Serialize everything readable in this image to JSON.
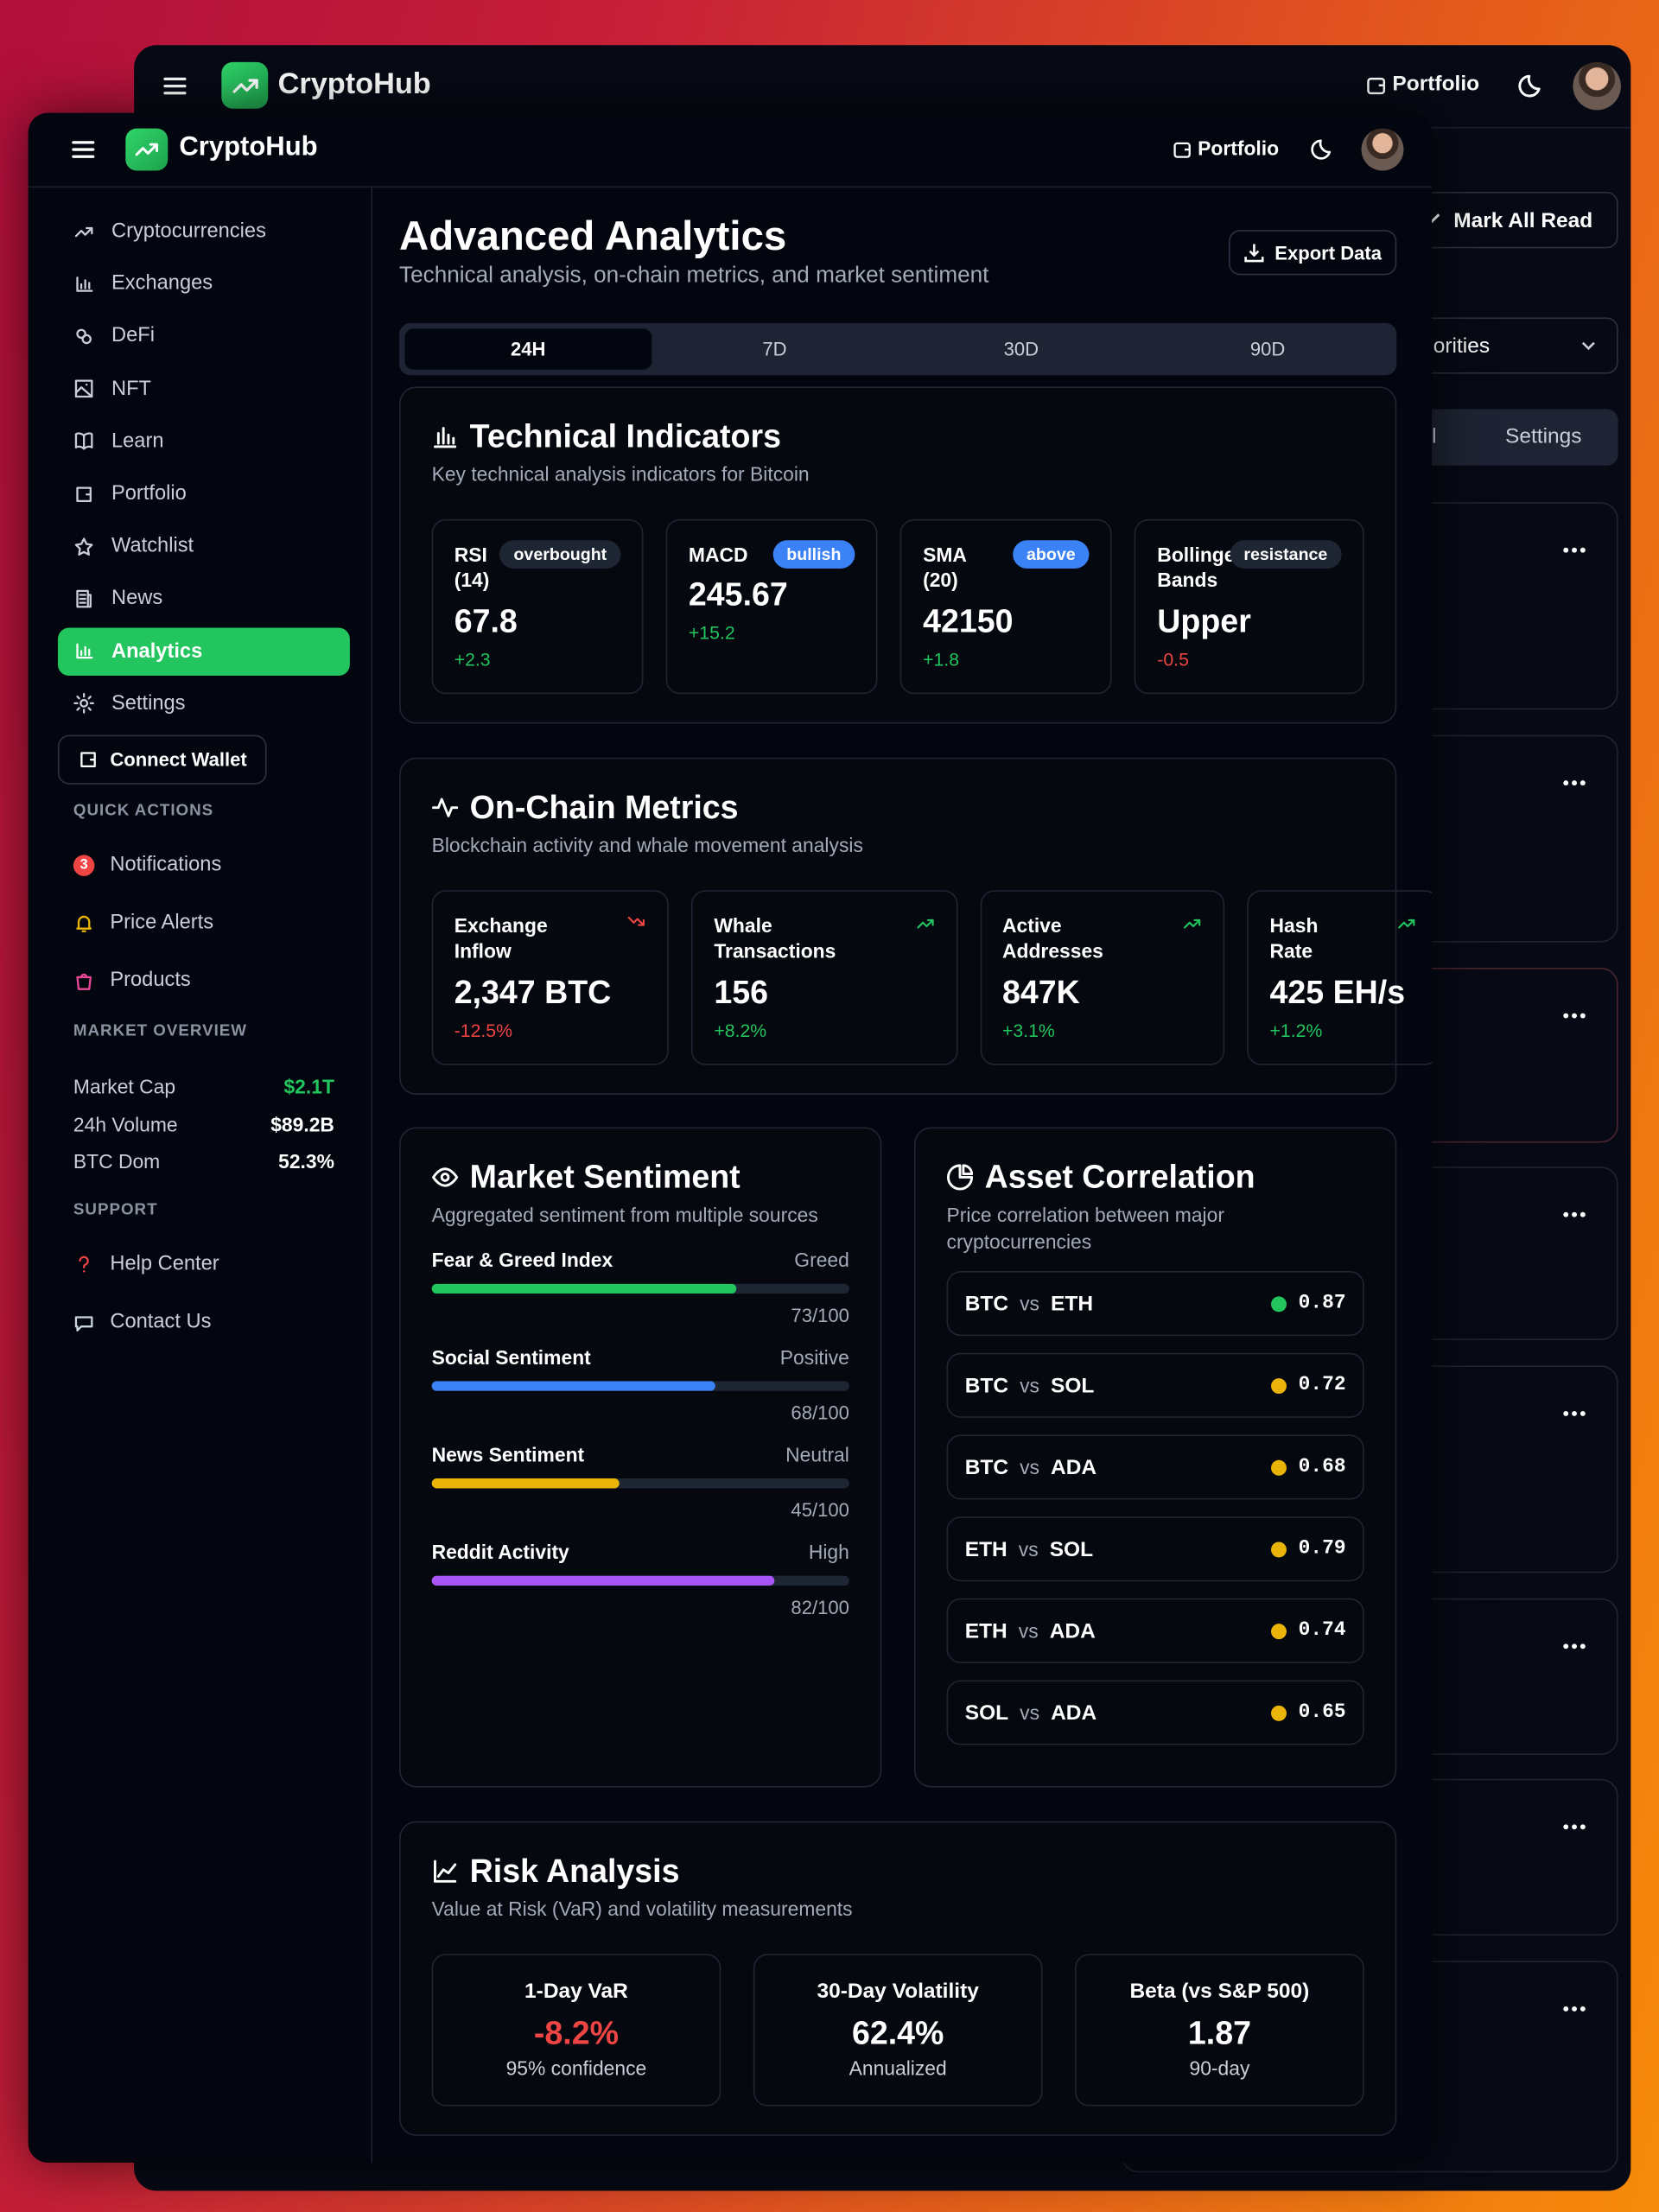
{
  "back_window": {
    "brand": "CryptoHub",
    "portfolio": "Portfolio",
    "mark_all_read": "Mark All Read",
    "filter": "orities",
    "tabs": [
      "l",
      "Settings"
    ]
  },
  "header": {
    "brand": "CryptoHub",
    "portfolio": "Portfolio"
  },
  "sidebar": {
    "nav": [
      {
        "label": "Cryptocurrencies"
      },
      {
        "label": "Exchanges"
      },
      {
        "label": "DeFi"
      },
      {
        "label": "NFT"
      },
      {
        "label": "Learn"
      },
      {
        "label": "Portfolio"
      },
      {
        "label": "Watchlist"
      },
      {
        "label": "News"
      },
      {
        "label": "Analytics",
        "active": true
      },
      {
        "label": "Settings"
      }
    ],
    "connect_wallet": "Connect Wallet",
    "quick_actions": {
      "title": "QUICK ACTIONS",
      "items": [
        {
          "badge": "3",
          "label": "Notifications"
        },
        {
          "label": "Price Alerts"
        },
        {
          "label": "Products"
        }
      ]
    },
    "market_overview": {
      "title": "MARKET OVERVIEW",
      "rows": [
        {
          "label": "Market Cap",
          "value": "$2.1T",
          "color": "#22c55e"
        },
        {
          "label": "24h Volume",
          "value": "$89.2B",
          "color": "#ffffff"
        },
        {
          "label": "BTC Dom",
          "value": "52.3%",
          "color": "#ffffff"
        }
      ]
    },
    "support": {
      "title": "SUPPORT",
      "items": [
        "Help Center",
        "Contact Us"
      ]
    }
  },
  "page": {
    "title": "Advanced Analytics",
    "subtitle": "Technical analysis, on-chain metrics, and market sentiment",
    "export": "Export Data",
    "tabs": [
      "24H",
      "7D",
      "30D",
      "90D"
    ]
  },
  "technical": {
    "title": "Technical Indicators",
    "subtitle": "Key technical analysis indicators for Bitcoin",
    "cards": [
      {
        "label": "RSI (14)",
        "badge": "overbought",
        "badge_color": "#1e2533",
        "value": "67.8",
        "change": "+2.3"
      },
      {
        "label": "MACD",
        "badge": "bullish",
        "badge_color": "#3b82f6",
        "value": "245.67",
        "change": "+15.2"
      },
      {
        "label": "SMA (20)",
        "badge": "above",
        "badge_color": "#3b82f6",
        "value": "42150",
        "change": "+1.8"
      },
      {
        "label": "Bollinger Bands",
        "badge": "resistance",
        "badge_color": "#1e2533",
        "value": "Upper",
        "change": "-0.5"
      }
    ]
  },
  "onchain": {
    "title": "On-Chain Metrics",
    "subtitle": "Blockchain activity and whale movement analysis",
    "cards": [
      {
        "label": "Exchange Inflow",
        "value": "2,347 BTC",
        "change": "-12.5%"
      },
      {
        "label": "Whale Transactions",
        "value": "156",
        "change": "+8.2%"
      },
      {
        "label": "Active Addresses",
        "value": "847K",
        "change": "+3.1%"
      },
      {
        "label": "Hash Rate",
        "value": "425 EH/s",
        "change": "+1.2%"
      }
    ]
  },
  "sentiment": {
    "title": "Market Sentiment",
    "subtitle": "Aggregated sentiment from multiple sources",
    "range": [
      0,
      100
    ],
    "items": [
      {
        "label": "Fear & Greed Index",
        "status": "Greed",
        "value": 73,
        "value_label": "73/100",
        "color": "#22c55e"
      },
      {
        "label": "Social Sentiment",
        "status": "Positive",
        "value": 68,
        "value_label": "68/100",
        "color": "#3b82f6"
      },
      {
        "label": "News Sentiment",
        "status": "Neutral",
        "value": 45,
        "value_label": "45/100",
        "color": "#eab308"
      },
      {
        "label": "Reddit Activity",
        "status": "High",
        "value": 82,
        "value_label": "82/100",
        "color": "#a855f7"
      }
    ]
  },
  "correlation": {
    "title": "Asset Correlation",
    "subtitle": "Price correlation between major cryptocurrencies",
    "vs": "vs",
    "pairs": [
      {
        "a": "BTC",
        "b": "ETH",
        "value": "0.87",
        "color": "#22c55e"
      },
      {
        "a": "BTC",
        "b": "SOL",
        "value": "0.72",
        "color": "#eab308"
      },
      {
        "a": "BTC",
        "b": "ADA",
        "value": "0.68",
        "color": "#eab308"
      },
      {
        "a": "ETH",
        "b": "SOL",
        "value": "0.79",
        "color": "#eab308"
      },
      {
        "a": "ETH",
        "b": "ADA",
        "value": "0.74",
        "color": "#eab308"
      },
      {
        "a": "SOL",
        "b": "ADA",
        "value": "0.65",
        "color": "#eab308"
      }
    ]
  },
  "risk": {
    "title": "Risk Analysis",
    "subtitle": "Value at Risk (VaR) and volatility measurements",
    "cards": [
      {
        "label": "1-Day VaR",
        "value": "-8.2%",
        "note": "95% confidence",
        "color": "#ef4444"
      },
      {
        "label": "30-Day Volatility",
        "value": "62.4%",
        "note": "Annualized",
        "color": "#ffffff"
      },
      {
        "label": "Beta (vs S&P 500)",
        "value": "1.87",
        "note": "90-day",
        "color": "#ffffff"
      }
    ]
  }
}
